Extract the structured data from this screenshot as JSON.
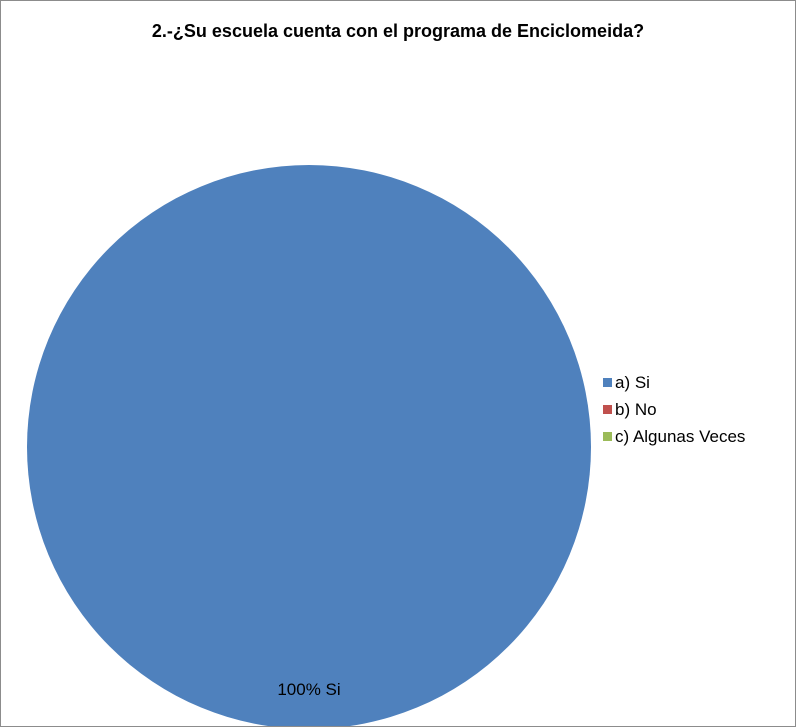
{
  "chart_data": {
    "type": "pie",
    "title": "2.-¿Su escuela cuenta con el programa de Enciclomeida?",
    "categories": [
      "a) Si",
      "b) No",
      "c) Algunas Veces"
    ],
    "values": [
      100,
      0,
      0
    ],
    "colors": [
      "#4f81bd",
      "#c0504d",
      "#9bbb59"
    ],
    "data_labels": [
      "100% Si"
    ],
    "legend_position": "right"
  }
}
